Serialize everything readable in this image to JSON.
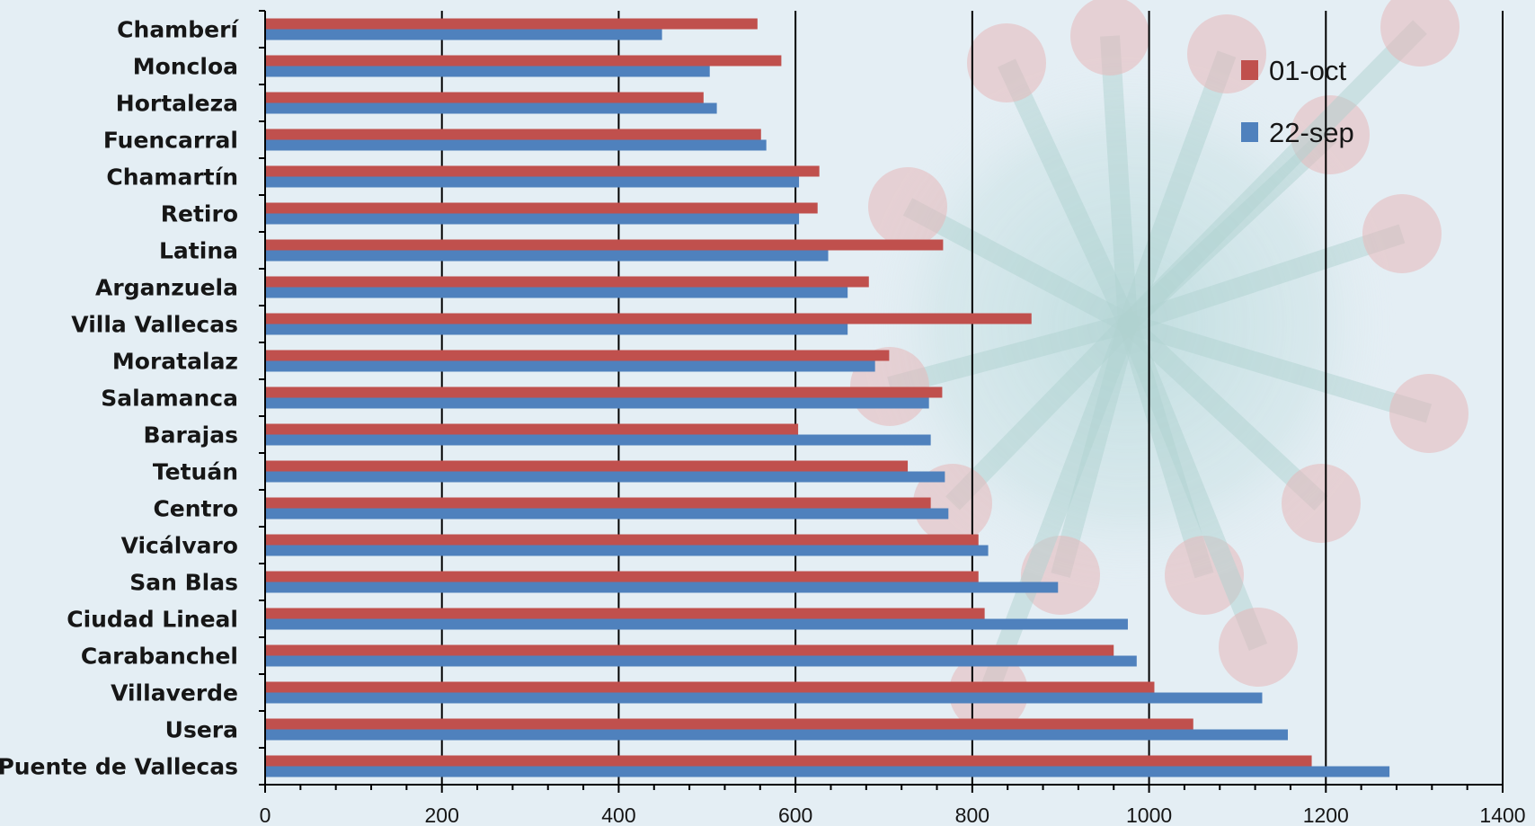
{
  "chart_data": {
    "type": "bar",
    "orientation": "horizontal",
    "categories": [
      "Chamberí",
      "Moncloa",
      "Hortaleza",
      "Fuencarral",
      "Chamartín",
      "Retiro",
      "Latina",
      "Arganzuela",
      "Villa Vallecas",
      "Moratalaz",
      "Salamanca",
      "Barajas",
      "Tetuán",
      "Centro",
      "Vicálvaro",
      "San Blas",
      "Ciudad Lineal",
      "Carabanchel",
      "Villaverde",
      "Usera",
      "Puente de Vallecas"
    ],
    "series": [
      {
        "name": "01-oct",
        "color": "#c0504d",
        "values": [
          557,
          584,
          496,
          561,
          627,
          625,
          767,
          683,
          867,
          706,
          766,
          603,
          727,
          753,
          807,
          807,
          814,
          960,
          1006,
          1050,
          1184
        ]
      },
      {
        "name": "22-sep",
        "color": "#4f81bd",
        "values": [
          449,
          503,
          511,
          567,
          604,
          604,
          637,
          659,
          659,
          690,
          751,
          753,
          769,
          773,
          818,
          897,
          976,
          986,
          1128,
          1157,
          1272
        ]
      }
    ],
    "x_ticks": [
      0,
      200,
      400,
      600,
      800,
      1000,
      1200,
      1400
    ],
    "xlim": [
      0,
      1400
    ],
    "grid": "vertical major gridlines",
    "legend": "top-right",
    "xlabel": "",
    "ylabel": "",
    "title": ""
  }
}
